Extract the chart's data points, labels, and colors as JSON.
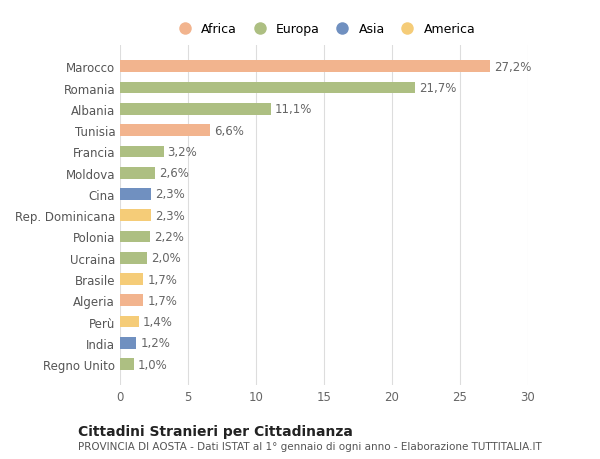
{
  "countries": [
    "Marocco",
    "Romania",
    "Albania",
    "Tunisia",
    "Francia",
    "Moldova",
    "Cina",
    "Rep. Dominicana",
    "Polonia",
    "Ucraina",
    "Brasile",
    "Algeria",
    "Perù",
    "India",
    "Regno Unito"
  ],
  "values": [
    27.2,
    21.7,
    11.1,
    6.6,
    3.2,
    2.6,
    2.3,
    2.3,
    2.2,
    2.0,
    1.7,
    1.7,
    1.4,
    1.2,
    1.0
  ],
  "labels": [
    "27,2%",
    "21,7%",
    "11,1%",
    "6,6%",
    "3,2%",
    "2,6%",
    "2,3%",
    "2,3%",
    "2,2%",
    "2,0%",
    "1,7%",
    "1,7%",
    "1,4%",
    "1,2%",
    "1,0%"
  ],
  "continents": [
    "Africa",
    "Europa",
    "Europa",
    "Africa",
    "Europa",
    "Europa",
    "Asia",
    "America",
    "Europa",
    "Europa",
    "America",
    "Africa",
    "America",
    "Asia",
    "Europa"
  ],
  "colors": {
    "Africa": "#F2B48E",
    "Europa": "#ADBF82",
    "Asia": "#7090C0",
    "America": "#F5CC78"
  },
  "legend_order": [
    "Africa",
    "Europa",
    "Asia",
    "America"
  ],
  "legend_colors": [
    "#F2B48E",
    "#ADBF82",
    "#7090C0",
    "#F5CC78"
  ],
  "title": "Cittadini Stranieri per Cittadinanza",
  "subtitle": "PROVINCIA DI AOSTA - Dati ISTAT al 1° gennaio di ogni anno - Elaborazione TUTTITALIA.IT",
  "xlim": [
    0,
    30
  ],
  "xticks": [
    0,
    5,
    10,
    15,
    20,
    25,
    30
  ],
  "background_color": "#ffffff",
  "grid_color": "#dddddd",
  "bar_height": 0.55,
  "label_fontsize": 8.5,
  "tick_fontsize": 8.5,
  "title_fontsize": 10,
  "subtitle_fontsize": 7.5
}
